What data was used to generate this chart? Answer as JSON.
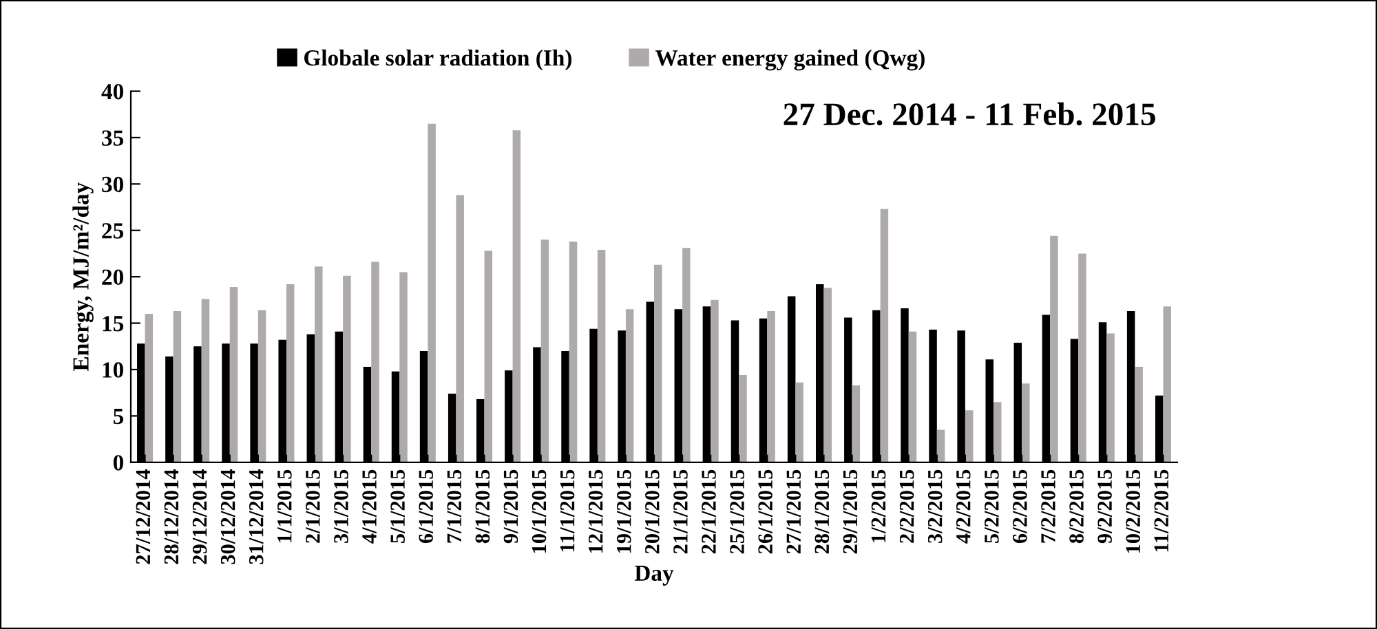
{
  "chart_data": {
    "type": "bar",
    "xlabel": "Day",
    "ylabel": "Energy, MJ/m²/day",
    "annotations": [
      "27 Dec. 2014 - 11 Feb. 2015"
    ],
    "categories": [
      "27/12/2014",
      "28/12/2014",
      "29/12/2014",
      "30/12/2014",
      "31/12/2014",
      "1/1/2015",
      "2/1/2015",
      "3/1/2015",
      "4/1/2015",
      "5/1/2015",
      "6/1/2015",
      "7/1/2015",
      "8/1/2015",
      "9/1/2015",
      "10/1/2015",
      "11/1/2015",
      "12/1/2015",
      "19/1/2015",
      "20/1/2015",
      "21/1/2015",
      "22/1/2015",
      "25/1/2015",
      "26/1/2015",
      "27/1/2015",
      "28/1/2015",
      "29/1/2015",
      "1/2/2015",
      "2/2/2015",
      "3/2/2015",
      "4/2/2015",
      "5/2/2015",
      "6/2/2015",
      "7/2/2015",
      "8/2/2015",
      "9/2/2015",
      "10/2/2015",
      "11/2/2015"
    ],
    "series": [
      {
        "name": "Globale solar radiation (Ih)",
        "color": "#000000",
        "values": [
          12.8,
          11.4,
          12.5,
          12.8,
          12.8,
          13.2,
          13.8,
          14.1,
          10.3,
          9.8,
          12.0,
          7.4,
          6.8,
          9.9,
          12.4,
          12.0,
          14.4,
          14.2,
          17.3,
          16.5,
          16.8,
          15.3,
          15.5,
          17.9,
          19.2,
          15.6,
          16.4,
          16.6,
          14.3,
          14.2,
          11.1,
          12.9,
          15.9,
          13.3,
          15.1,
          16.3,
          7.2
        ]
      },
      {
        "name": "Water energy gained (Qwg)",
        "color": "#aeaaaa",
        "values": [
          16.0,
          16.3,
          17.6,
          18.9,
          16.4,
          19.2,
          21.1,
          20.1,
          21.6,
          20.5,
          36.5,
          28.8,
          22.8,
          35.8,
          24.0,
          23.8,
          22.9,
          16.5,
          21.3,
          23.1,
          17.5,
          9.4,
          16.3,
          8.6,
          18.8,
          8.3,
          27.3,
          14.1,
          3.5,
          5.6,
          6.5,
          8.5,
          24.4,
          22.5,
          13.9,
          10.3,
          16.8
        ]
      }
    ],
    "ylim": [
      0,
      40
    ],
    "yticks": [
      0,
      5,
      10,
      15,
      20,
      25,
      30,
      35,
      40
    ],
    "grid": false,
    "legend": "top"
  }
}
